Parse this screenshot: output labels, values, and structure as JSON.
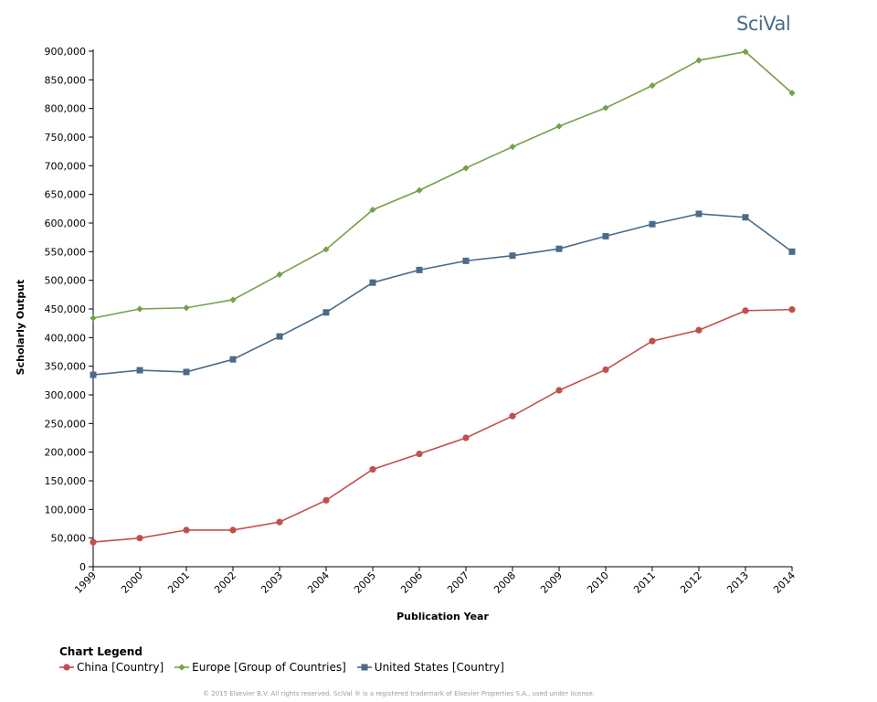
{
  "brand": {
    "logo_text": "SciVal"
  },
  "legend": {
    "title": "Chart Legend"
  },
  "footer": {
    "copyright": "© 2015 Elsevier B.V. All rights reserved. SciVal ® is a registered trademark of Elsevier Properties S.A., used under license."
  },
  "colors": {
    "china": "#c0504d",
    "europe": "#77a04a",
    "united_states": "#4a6b8a",
    "axis": "#000000"
  },
  "chart_data": {
    "type": "line",
    "title": "",
    "xlabel": "Publication Year",
    "ylabel": "Scholarly Output",
    "x": [
      1999,
      2000,
      2001,
      2002,
      2003,
      2004,
      2005,
      2006,
      2007,
      2008,
      2009,
      2010,
      2011,
      2012,
      2013,
      2014
    ],
    "ylim": [
      0,
      900000
    ],
    "yticks": [
      0,
      50000,
      100000,
      150000,
      200000,
      250000,
      300000,
      350000,
      400000,
      450000,
      500000,
      550000,
      600000,
      650000,
      700000,
      750000,
      800000,
      850000,
      900000
    ],
    "grid": false,
    "legend_position": "bottom-left",
    "series": [
      {
        "name": "China [Country]",
        "color_key": "china",
        "marker": "circle",
        "values": [
          43000,
          50000,
          64000,
          64000,
          78000,
          116000,
          170000,
          197000,
          225000,
          263000,
          308000,
          344000,
          394000,
          413000,
          447000,
          449000
        ]
      },
      {
        "name": "Europe [Group of Countries]",
        "color_key": "europe",
        "marker": "diamond",
        "values": [
          434000,
          450000,
          452000,
          466000,
          510000,
          554000,
          623000,
          657000,
          696000,
          733000,
          769000,
          801000,
          840000,
          884000,
          899000,
          827000
        ]
      },
      {
        "name": "United States [Country]",
        "color_key": "united_states",
        "marker": "square",
        "values": [
          335000,
          343000,
          340000,
          362000,
          402000,
          444000,
          496000,
          518000,
          534000,
          543000,
          555000,
          577000,
          598000,
          616000,
          610000,
          550000
        ]
      }
    ]
  }
}
